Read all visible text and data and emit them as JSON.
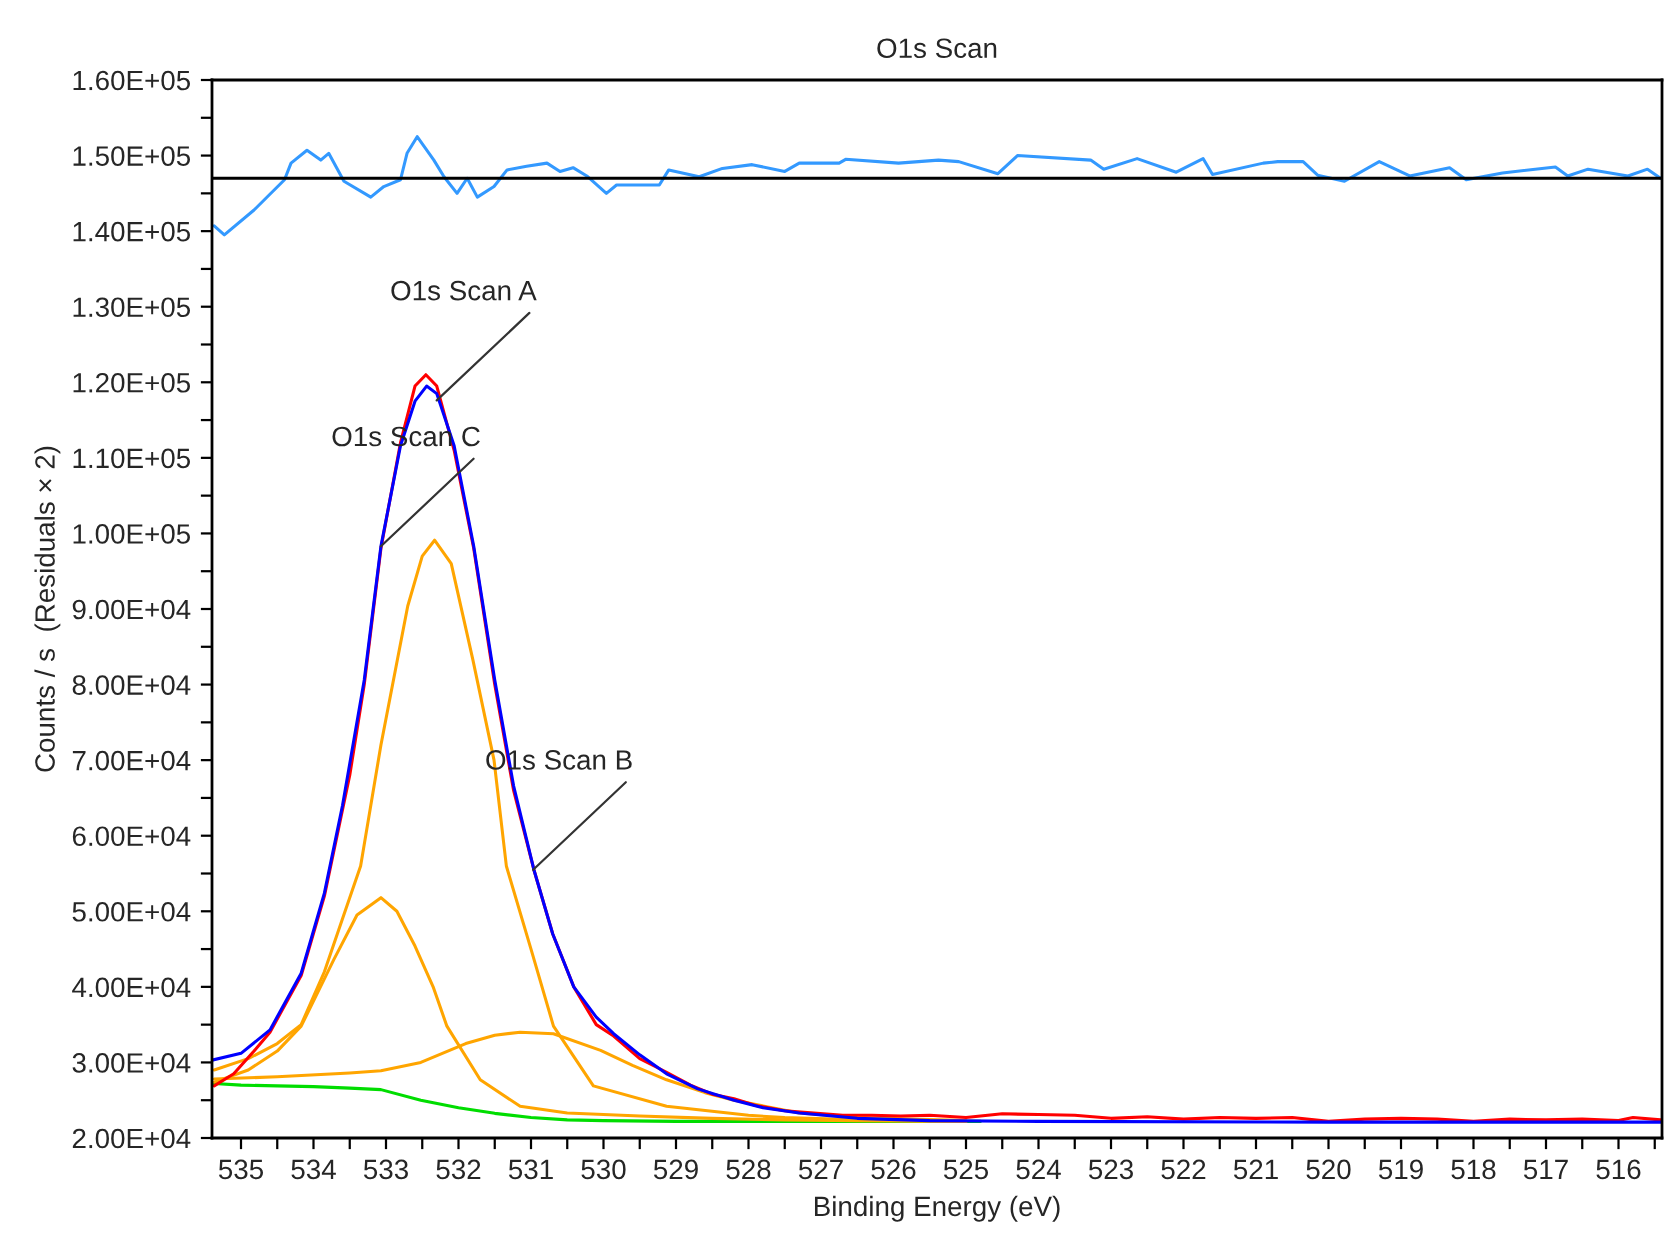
{
  "chart_data": {
    "type": "line",
    "title": "O1s Scan",
    "xlabel": "Binding Energy (eV)",
    "ylabel": "Counts / s  (Residuals × 2)",
    "xlim": [
      535.4,
      515.4
    ],
    "ylim": [
      20000,
      160000
    ],
    "xticks": [
      535,
      {
        "value": 534.5,
        "label": null
      },
      534,
      {
        "value": 533.5,
        "label": null
      },
      533,
      {
        "value": 532.5,
        "label": null
      },
      532,
      {
        "value": 531.5,
        "label": null
      },
      531,
      {
        "value": 530.5,
        "label": null
      },
      530,
      {
        "value": 529.5,
        "label": null
      },
      529,
      {
        "value": 528.5,
        "label": null
      },
      528,
      {
        "value": 527.5,
        "label": null
      },
      527,
      {
        "value": 526.5,
        "label": null
      },
      526,
      {
        "value": 525.5,
        "label": null
      },
      525,
      {
        "value": 524.5,
        "label": null
      },
      524,
      {
        "value": 523.5,
        "label": null
      },
      523,
      {
        "value": 522.5,
        "label": null
      },
      522,
      {
        "value": 521.5,
        "label": null
      },
      521,
      {
        "value": 520.5,
        "label": null
      },
      520,
      {
        "value": 519.5,
        "label": null
      },
      519,
      {
        "value": 518.5,
        "label": null
      },
      518,
      {
        "value": 517.5,
        "label": null
      },
      517,
      {
        "value": 516.5,
        "label": null
      },
      516,
      {
        "value": 515.5,
        "label": null
      }
    ],
    "yticks": [
      {
        "value": 20000,
        "label": "2.00E+04"
      },
      {
        "value": 25000,
        "label": null
      },
      {
        "value": 30000,
        "label": "3.00E+04"
      },
      {
        "value": 35000,
        "label": null
      },
      {
        "value": 40000,
        "label": "4.00E+04"
      },
      {
        "value": 45000,
        "label": null
      },
      {
        "value": 50000,
        "label": "5.00E+04"
      },
      {
        "value": 55000,
        "label": null
      },
      {
        "value": 60000,
        "label": "6.00E+04"
      },
      {
        "value": 65000,
        "label": null
      },
      {
        "value": 70000,
        "label": "7.00E+04"
      },
      {
        "value": 75000,
        "label": null
      },
      {
        "value": 80000,
        "label": "8.00E+04"
      },
      {
        "value": 85000,
        "label": null
      },
      {
        "value": 90000,
        "label": "9.00E+04"
      },
      {
        "value": 95000,
        "label": null
      },
      {
        "value": 100000,
        "label": "1.00E+05"
      },
      {
        "value": 105000,
        "label": null
      },
      {
        "value": 110000,
        "label": "1.10E+05"
      },
      {
        "value": 115000,
        "label": null
      },
      {
        "value": 120000,
        "label": "1.20E+05"
      },
      {
        "value": 125000,
        "label": null
      },
      {
        "value": 130000,
        "label": "1.30E+05"
      },
      {
        "value": 135000,
        "label": null
      },
      {
        "value": 140000,
        "label": "1.40E+05"
      },
      {
        "value": 145000,
        "label": null
      },
      {
        "value": 150000,
        "label": "1.50E+05"
      },
      {
        "value": 155000,
        "label": null
      },
      {
        "value": 160000,
        "label": "1.60E+05"
      }
    ],
    "grid": false,
    "legend": false,
    "marker": "none",
    "line_style": "solid",
    "ref_lines": [
      {
        "axis": "y",
        "value": 147000,
        "color": "#000000"
      }
    ],
    "annotations": [
      {
        "text": "O1s Scan A",
        "x": 532.3,
        "y": 117600
      },
      {
        "text": "O1s Scan C",
        "x": 533.07,
        "y": 98300
      },
      {
        "text": "O1s Scan B",
        "x": 530.97,
        "y": 55500
      }
    ],
    "series": [
      {
        "color": "#00dd00",
        "x": [
          535.37,
          535.0,
          534.5,
          534.0,
          533.5,
          533.07,
          532.52,
          532.0,
          531.5,
          531.0,
          530.5,
          530.0,
          529.0,
          528.0,
          527.0,
          526.0,
          524.8
        ],
        "values": [
          27200,
          27000,
          26900,
          26800,
          26600,
          26400,
          25000,
          24000,
          23260,
          22700,
          22400,
          22300,
          22200,
          22200,
          22200,
          22200,
          22200
        ]
      },
      {
        "color": "#ffa500",
        "x": [
          535.37,
          534.9,
          534.5,
          534.17,
          533.72,
          533.4,
          533.07,
          532.85,
          532.6,
          532.35,
          532.16,
          531.7,
          531.15,
          530.5,
          529.5,
          528.5,
          527.5,
          526.5,
          525.0
        ],
        "values": [
          27400,
          29000,
          31500,
          34800,
          43600,
          49500,
          51800,
          50000,
          45400,
          40000,
          34800,
          27700,
          24200,
          23300,
          22900,
          22600,
          22400,
          22300,
          22200
        ]
      },
      {
        "color": "#ffa500",
        "x": [
          535.37,
          534.9,
          534.5,
          534.17,
          533.85,
          533.6,
          533.35,
          533.07,
          532.7,
          532.5,
          532.33,
          532.1,
          531.8,
          531.51,
          531.34,
          531.0,
          530.69,
          530.14,
          529.13,
          528.0,
          527.5,
          526.5,
          525.0
        ],
        "values": [
          29000,
          30500,
          32500,
          35000,
          42000,
          49000,
          56000,
          72000,
          90400,
          97000,
          99100,
          96000,
          83200,
          70000,
          56000,
          45000,
          34800,
          26900,
          24200,
          23000,
          22700,
          22400,
          22200
        ]
      },
      {
        "color": "#ffa500",
        "x": [
          535.37,
          534.5,
          533.5,
          533.07,
          532.52,
          531.9,
          531.5,
          531.15,
          530.69,
          530.04,
          529.6,
          529.13,
          528.6,
          528.2,
          527.3,
          526.5,
          525.0
        ],
        "values": [
          27800,
          28100,
          28600,
          28900,
          30000,
          32500,
          33600,
          34000,
          33800,
          31600,
          29600,
          27700,
          26000,
          25000,
          23300,
          22700,
          22300
        ]
      },
      {
        "color": "#ff0000",
        "x": [
          535.37,
          535.1,
          534.82,
          534.6,
          534.17,
          533.85,
          533.5,
          533.3,
          533.07,
          532.8,
          532.6,
          532.45,
          532.3,
          532.06,
          531.79,
          531.5,
          531.24,
          530.96,
          530.7,
          530.41,
          530.1,
          529.86,
          529.5,
          529.13,
          528.8,
          528.5,
          528.2,
          527.9,
          527.5,
          527.1,
          526.7,
          526.3,
          525.9,
          525.5,
          525.0,
          524.5,
          524.0,
          523.5,
          523.0,
          522.5,
          522.0,
          521.5,
          521.0,
          520.5,
          520.0,
          519.5,
          519.0,
          518.5,
          518.0,
          517.5,
          517.0,
          516.5,
          516.0,
          515.8,
          515.42
        ],
        "values": [
          26900,
          28500,
          31500,
          34000,
          41500,
          52000,
          68000,
          80000,
          98000,
          112000,
          119500,
          121000,
          119500,
          111000,
          98000,
          80000,
          66000,
          55500,
          47000,
          40000,
          35000,
          33500,
          30500,
          28700,
          27000,
          25800,
          25200,
          24300,
          23600,
          23300,
          23000,
          23000,
          22900,
          23000,
          22700,
          23200,
          23100,
          23000,
          22600,
          22800,
          22500,
          22700,
          22600,
          22700,
          22200,
          22500,
          22600,
          22500,
          22200,
          22500,
          22400,
          22500,
          22300,
          22700,
          22400
        ]
      },
      {
        "color": "#0000ff",
        "x": [
          535.4,
          535.0,
          534.6,
          534.17,
          533.85,
          533.6,
          533.3,
          533.07,
          532.8,
          532.6,
          532.44,
          532.3,
          532.06,
          531.79,
          531.5,
          531.24,
          530.96,
          530.7,
          530.41,
          530.1,
          529.86,
          529.5,
          529.13,
          528.7,
          528.2,
          527.8,
          527.3,
          526.5,
          525.5,
          524.0,
          520.0,
          515.42
        ],
        "values": [
          30300,
          31200,
          34300,
          41800,
          52400,
          64000,
          80600,
          98300,
          111600,
          117500,
          119500,
          118500,
          111600,
          98300,
          80600,
          66600,
          55500,
          47000,
          40000,
          36000,
          33800,
          31000,
          28500,
          26500,
          25000,
          24000,
          23300,
          22600,
          22300,
          22200,
          22100,
          22100
        ]
      },
      {
        "color": "#3399ff",
        "x": [
          535.37,
          535.23,
          534.82,
          534.4,
          534.31,
          534.09,
          533.9,
          533.79,
          533.58,
          533.21,
          533.03,
          532.8,
          532.71,
          532.57,
          532.34,
          532.2,
          532.02,
          531.88,
          531.74,
          531.51,
          531.33,
          531.06,
          530.78,
          530.6,
          530.42,
          530.23,
          529.96,
          529.82,
          529.23,
          529.1,
          528.68,
          528.36,
          527.95,
          527.5,
          527.3,
          526.75,
          526.66,
          525.93,
          525.38,
          525.1,
          524.56,
          524.29,
          523.28,
          523.1,
          522.64,
          522.1,
          521.73,
          521.6,
          520.9,
          520.7,
          520.35,
          520.15,
          519.78,
          519.3,
          518.88,
          518.33,
          518.1,
          517.6,
          516.87,
          516.7,
          516.42,
          515.87,
          515.6,
          515.42
        ],
        "values": [
          140700,
          139500,
          142800,
          146800,
          149000,
          150700,
          149400,
          150300,
          146600,
          144500,
          145900,
          146800,
          150300,
          152500,
          149400,
          147200,
          145000,
          147000,
          144500,
          145900,
          148100,
          148600,
          149000,
          147900,
          148400,
          147300,
          145000,
          146100,
          146100,
          148100,
          147200,
          148300,
          148800,
          147900,
          149000,
          149000,
          149500,
          149000,
          149400,
          149200,
          147600,
          150000,
          149400,
          148200,
          149600,
          147800,
          149600,
          147500,
          149000,
          149200,
          149200,
          147400,
          146600,
          149200,
          147300,
          148400,
          146800,
          147700,
          148500,
          147300,
          148200,
          147300,
          148200,
          147000
        ]
      }
    ]
  }
}
